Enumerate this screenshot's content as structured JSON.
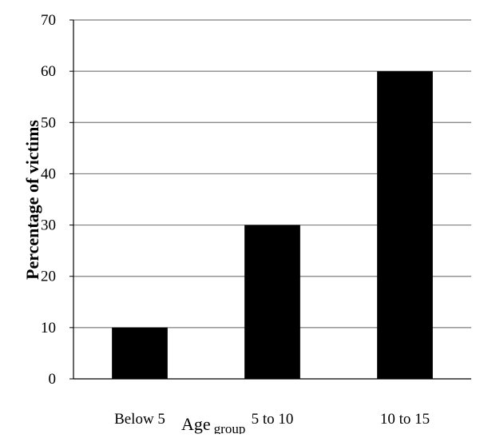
{
  "chart_data": {
    "type": "bar",
    "title": "",
    "xlabel": "Age",
    "xlabel_sub": "group",
    "ylabel": "Percentage of victims",
    "categories": [
      "Below 5",
      "5 to 10",
      "10 to 15"
    ],
    "values": [
      10,
      30,
      60
    ],
    "ylim": [
      0,
      70
    ],
    "yticks": [
      0,
      10,
      20,
      30,
      40,
      50,
      60,
      70
    ],
    "grid": true,
    "bar_color": "#000000",
    "gridline_color": "#7f7f7f"
  }
}
